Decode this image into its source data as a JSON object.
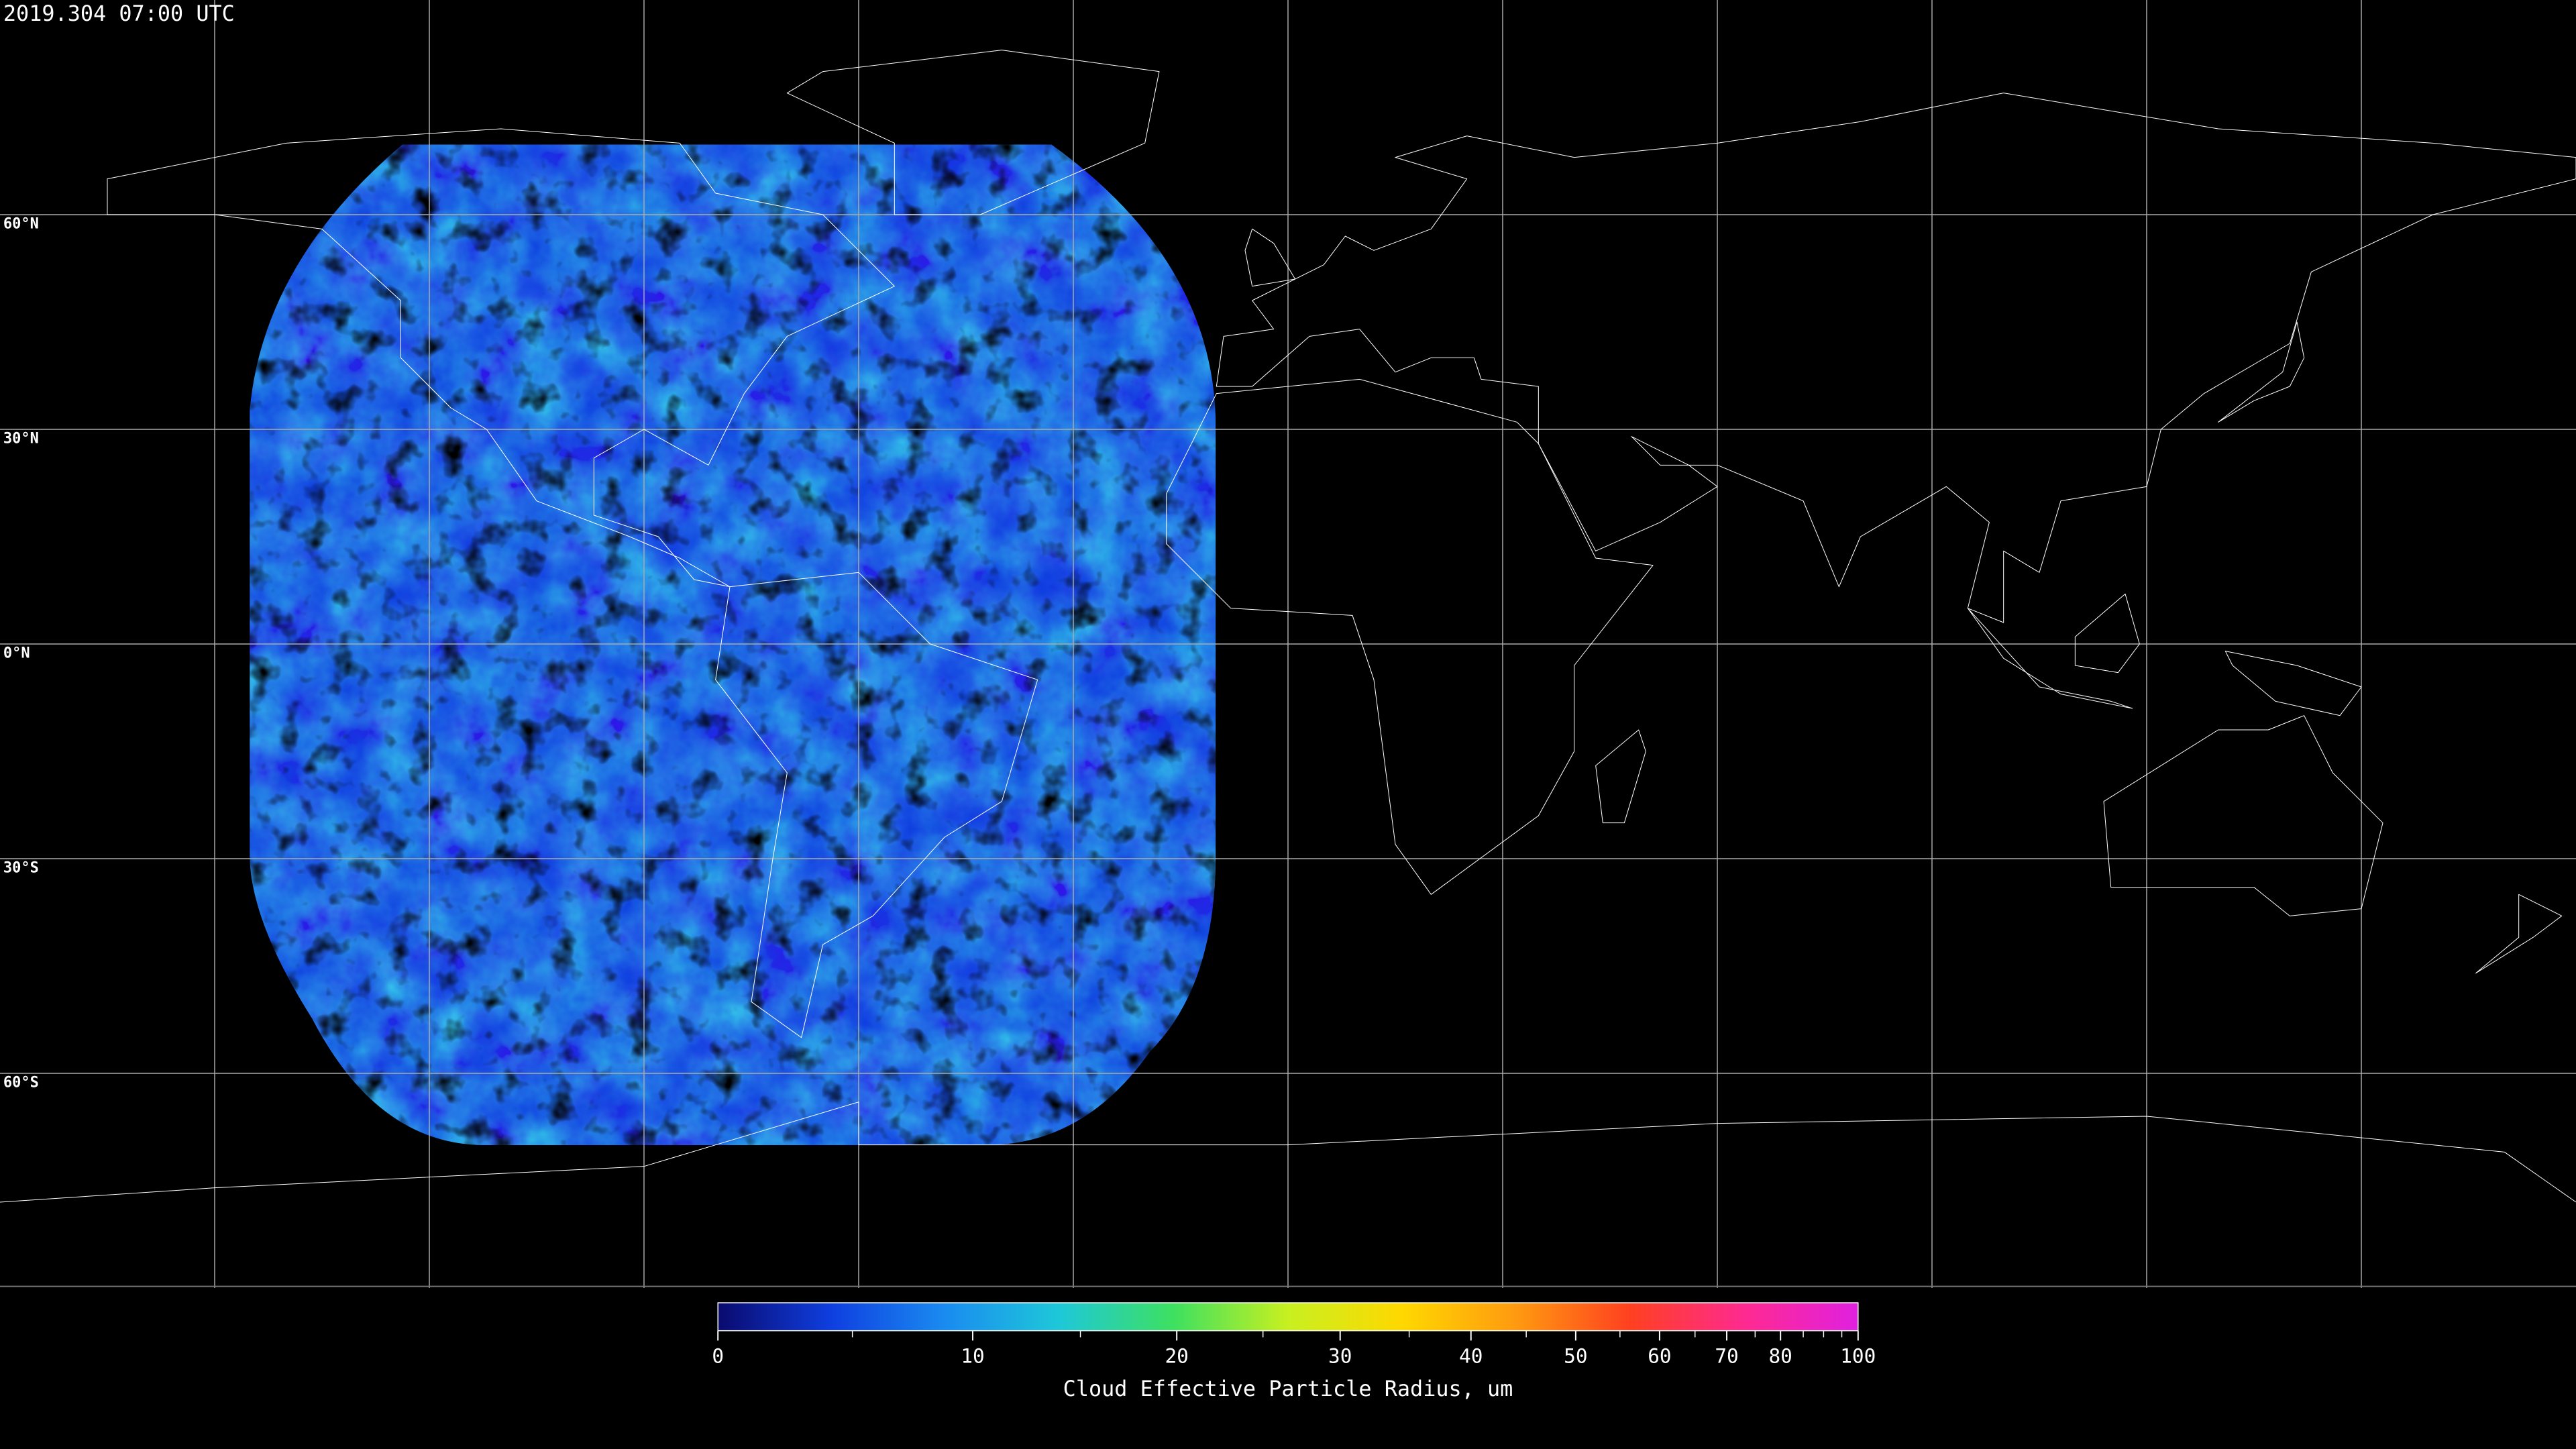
{
  "title": "2019.304 07:00 UTC",
  "map": {
    "latitudes": [
      {
        "value": 60,
        "label": "60°N"
      },
      {
        "value": 30,
        "label": "30°N"
      },
      {
        "value": 0,
        "label": "0°N"
      },
      {
        "value": -30,
        "label": "30°S"
      },
      {
        "value": -60,
        "label": "60°S"
      }
    ]
  },
  "colorbar": {
    "label": "Cloud Effective Particle Radius, um",
    "lim": [
      0,
      100
    ],
    "ticks": [
      0,
      10,
      20,
      30,
      40,
      50,
      60,
      70,
      80,
      100
    ],
    "minor_ticks": [
      5,
      15,
      25,
      35,
      45,
      55,
      65,
      75,
      85,
      90,
      95
    ],
    "colors": [
      "#0a0a6e",
      "#0f3fe0",
      "#1a8cf0",
      "#1ec8d8",
      "#3ee060",
      "#c8f020",
      "#ffd800",
      "#ff9a10",
      "#ff4020",
      "#ff2a90",
      "#e020e0"
    ]
  }
}
